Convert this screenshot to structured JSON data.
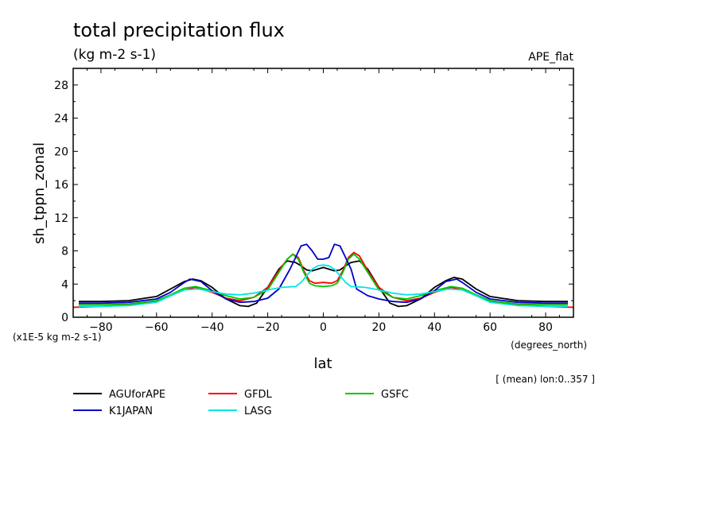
{
  "header": {
    "title": "total precipitation flux",
    "units": "(kg m-2 s-1)",
    "experiment": "APE_flat"
  },
  "footer": {
    "scale_note": "(x1E-5 kg m-2 s-1)",
    "x_units": "(degrees_north)",
    "region_note": "[ (mean) lon:0..357 ]"
  },
  "chart_data": {
    "type": "line",
    "title": "total precipitation flux",
    "xlabel": "lat",
    "ylabel": "sh_tppn_zonal",
    "xlim": [
      -90,
      90
    ],
    "ylim": [
      0,
      30
    ],
    "xticks": [
      -80,
      -60,
      -40,
      -20,
      0,
      20,
      40,
      60,
      80
    ],
    "yticks": [
      0,
      4,
      8,
      12,
      16,
      20,
      24,
      28
    ],
    "grid": false,
    "legend_position": "bottom",
    "series": [
      {
        "name": "AGUforAPE",
        "color": "#000000",
        "x": [
          -88,
          -80,
          -70,
          -60,
          -55,
          -50,
          -47,
          -44,
          -40,
          -35,
          -30,
          -27,
          -24,
          -20,
          -16,
          -13,
          -10,
          -8,
          -6,
          -4,
          -2,
          0,
          2,
          4,
          6,
          8,
          10,
          13,
          16,
          20,
          24,
          27,
          30,
          35,
          40,
          44,
          47,
          50,
          55,
          60,
          70,
          80,
          88
        ],
        "y": [
          1.9,
          1.9,
          2.0,
          2.5,
          3.4,
          4.3,
          4.6,
          4.4,
          3.6,
          2.2,
          1.4,
          1.3,
          1.7,
          3.6,
          5.8,
          6.8,
          6.6,
          6.2,
          5.7,
          5.6,
          5.8,
          6.0,
          5.8,
          5.6,
          5.7,
          6.2,
          6.6,
          6.8,
          5.8,
          3.6,
          1.7,
          1.3,
          1.4,
          2.2,
          3.6,
          4.4,
          4.8,
          4.6,
          3.4,
          2.5,
          2.0,
          1.9,
          1.9
        ]
      },
      {
        "name": "GFDL",
        "color": "#ff0000",
        "x": [
          -90,
          -80,
          -70,
          -60,
          -55,
          -50,
          -46,
          -40,
          -35,
          -30,
          -25,
          -20,
          -16,
          -13,
          -11,
          -9,
          -7,
          -5,
          -3,
          0,
          3,
          5,
          7,
          9,
          11,
          13,
          16,
          20,
          25,
          30,
          35,
          40,
          46,
          50,
          55,
          60,
          70,
          80,
          90
        ],
        "y": [
          1.2,
          1.3,
          1.5,
          1.9,
          2.6,
          3.3,
          3.6,
          3.0,
          2.3,
          2.0,
          2.4,
          3.6,
          5.6,
          7.0,
          7.6,
          7.2,
          5.6,
          4.4,
          4.1,
          4.2,
          4.1,
          4.4,
          5.6,
          7.2,
          7.8,
          7.4,
          5.6,
          3.6,
          2.4,
          2.0,
          2.3,
          3.0,
          3.6,
          3.3,
          2.6,
          1.9,
          1.5,
          1.3,
          1.2
        ]
      },
      {
        "name": "GSFC",
        "color": "#00c800",
        "x": [
          -88,
          -80,
          -70,
          -60,
          -55,
          -50,
          -46,
          -40,
          -35,
          -30,
          -25,
          -20,
          -16,
          -13,
          -11,
          -9,
          -7,
          -5,
          -3,
          0,
          3,
          5,
          7,
          9,
          11,
          13,
          16,
          20,
          25,
          30,
          35,
          40,
          46,
          50,
          55,
          60,
          70,
          80,
          88
        ],
        "y": [
          1.5,
          1.5,
          1.6,
          2.0,
          2.7,
          3.5,
          3.7,
          3.2,
          2.6,
          2.2,
          2.4,
          3.3,
          5.4,
          7.0,
          7.6,
          7.0,
          5.4,
          4.1,
          3.8,
          3.7,
          3.8,
          4.1,
          5.4,
          7.0,
          7.6,
          7.0,
          5.4,
          3.3,
          2.4,
          2.2,
          2.6,
          3.2,
          3.7,
          3.5,
          2.7,
          2.0,
          1.6,
          1.5,
          1.5
        ]
      },
      {
        "name": "K1JAPAN",
        "color": "#0000c8",
        "x": [
          -88,
          -80,
          -70,
          -60,
          -55,
          -50,
          -48,
          -44,
          -40,
          -35,
          -30,
          -25,
          -20,
          -16,
          -12,
          -10,
          -8,
          -6,
          -4,
          -2,
          0,
          2,
          4,
          6,
          8,
          10,
          12,
          16,
          20,
          25,
          30,
          35,
          40,
          44,
          48,
          50,
          55,
          60,
          70,
          80,
          88
        ],
        "y": [
          1.7,
          1.7,
          1.8,
          2.2,
          3.0,
          4.2,
          4.6,
          4.3,
          3.2,
          2.2,
          1.8,
          1.9,
          2.3,
          3.4,
          5.8,
          7.2,
          8.6,
          8.8,
          8.0,
          7.0,
          7.0,
          7.2,
          8.8,
          8.6,
          7.2,
          5.8,
          3.4,
          2.6,
          2.2,
          1.9,
          1.8,
          2.2,
          3.2,
          4.3,
          4.6,
          4.2,
          3.0,
          2.2,
          1.8,
          1.7,
          1.7
        ]
      },
      {
        "name": "LASG",
        "color": "#00e6e6",
        "x": [
          -88,
          -80,
          -70,
          -60,
          -55,
          -50,
          -45,
          -40,
          -35,
          -30,
          -25,
          -20,
          -15,
          -10,
          -8,
          -6,
          -4,
          -2,
          0,
          2,
          4,
          6,
          8,
          10,
          15,
          20,
          25,
          30,
          35,
          40,
          45,
          50,
          55,
          60,
          70,
          80,
          88
        ],
        "y": [
          1.3,
          1.3,
          1.4,
          1.8,
          2.6,
          3.3,
          3.4,
          3.1,
          2.8,
          2.7,
          2.9,
          3.3,
          3.6,
          3.7,
          4.2,
          5.0,
          5.8,
          6.2,
          6.3,
          6.2,
          5.8,
          5.0,
          4.2,
          3.7,
          3.6,
          3.3,
          2.9,
          2.7,
          2.8,
          3.1,
          3.4,
          3.3,
          2.6,
          1.8,
          1.4,
          1.3,
          1.3
        ]
      }
    ]
  }
}
